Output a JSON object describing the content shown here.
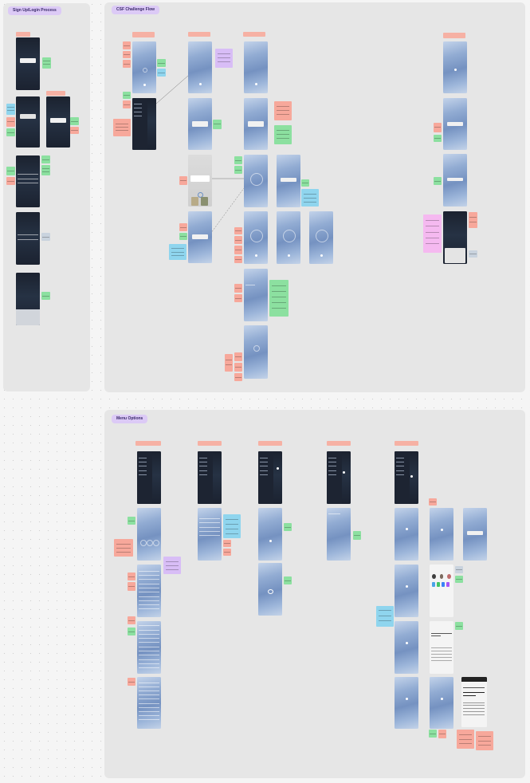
{
  "sections": {
    "signup": {
      "label": "Sign Up/Login Process"
    },
    "csf": {
      "label": "CSF Challenge Flow"
    },
    "menu": {
      "label": "Menu Options"
    }
  },
  "colors": {
    "board": "#e6e6e6",
    "section_label": "#dccaf6",
    "sticky_pink": "#f7a89b",
    "sticky_green": "#8ce0a0",
    "sticky_blue": "#8fd5ee",
    "sticky_purple": "#d8bdf6",
    "screen_blue": "#92acd3",
    "screen_dark": "#1b222f"
  }
}
